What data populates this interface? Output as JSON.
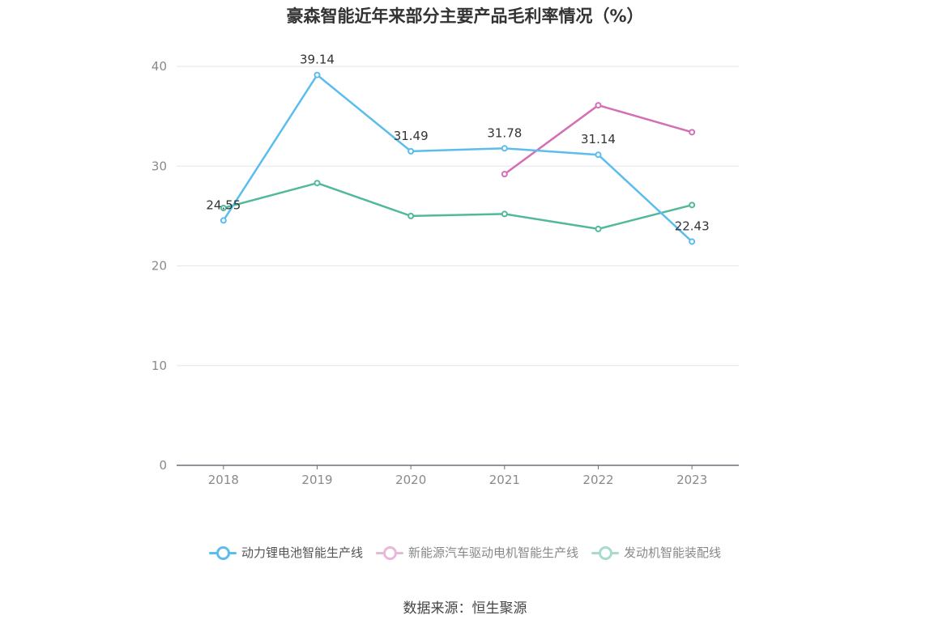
{
  "chart_data": {
    "type": "line",
    "title": "豪森智能近年来部分主要产品毛利率情况（%）",
    "categories": [
      "2018",
      "2019",
      "2020",
      "2021",
      "2022",
      "2023"
    ],
    "ylim": [
      0,
      40
    ],
    "yticks": [
      0,
      10,
      20,
      30,
      40
    ],
    "grid": true,
    "legend_position": "bottom",
    "series": [
      {
        "name": "动力锂电池智能生产线",
        "color": "#5bbdee",
        "values": [
          24.55,
          39.14,
          31.49,
          31.78,
          31.14,
          22.43
        ],
        "labels": [
          "24.55",
          "39.14",
          "31.49",
          "31.78",
          "31.14",
          "22.43"
        ]
      },
      {
        "name": "新能源汽车驱动电机智能生产线",
        "color": "#d46fb4",
        "values": [
          null,
          null,
          null,
          29.2,
          36.1,
          33.4
        ]
      },
      {
        "name": "发动机智能装配线",
        "color": "#52b89c",
        "values": [
          25.8,
          28.3,
          25.0,
          25.2,
          23.7,
          26.1
        ]
      }
    ]
  },
  "source": "数据来源：恒生聚源"
}
